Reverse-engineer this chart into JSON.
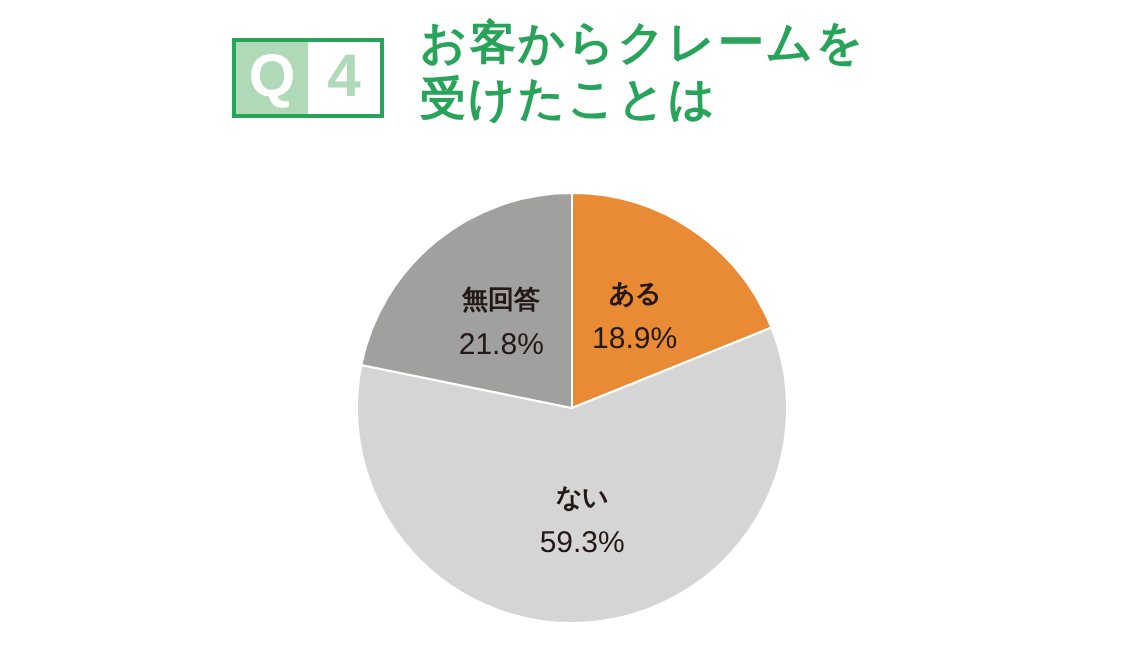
{
  "chart_data": {
    "type": "pie",
    "title": "お客からクレームを受けたことは",
    "subtitle": "Q 4",
    "categories": [
      "ある",
      "ない",
      "無回答"
    ],
    "values": [
      18.9,
      59.3,
      21.8
    ],
    "colors": [
      "#e98a35",
      "#d5d5d5",
      "#a0a09f"
    ],
    "value_labels": [
      "18.9%",
      "59.3%",
      "21.8%"
    ],
    "legend": false
  }
}
